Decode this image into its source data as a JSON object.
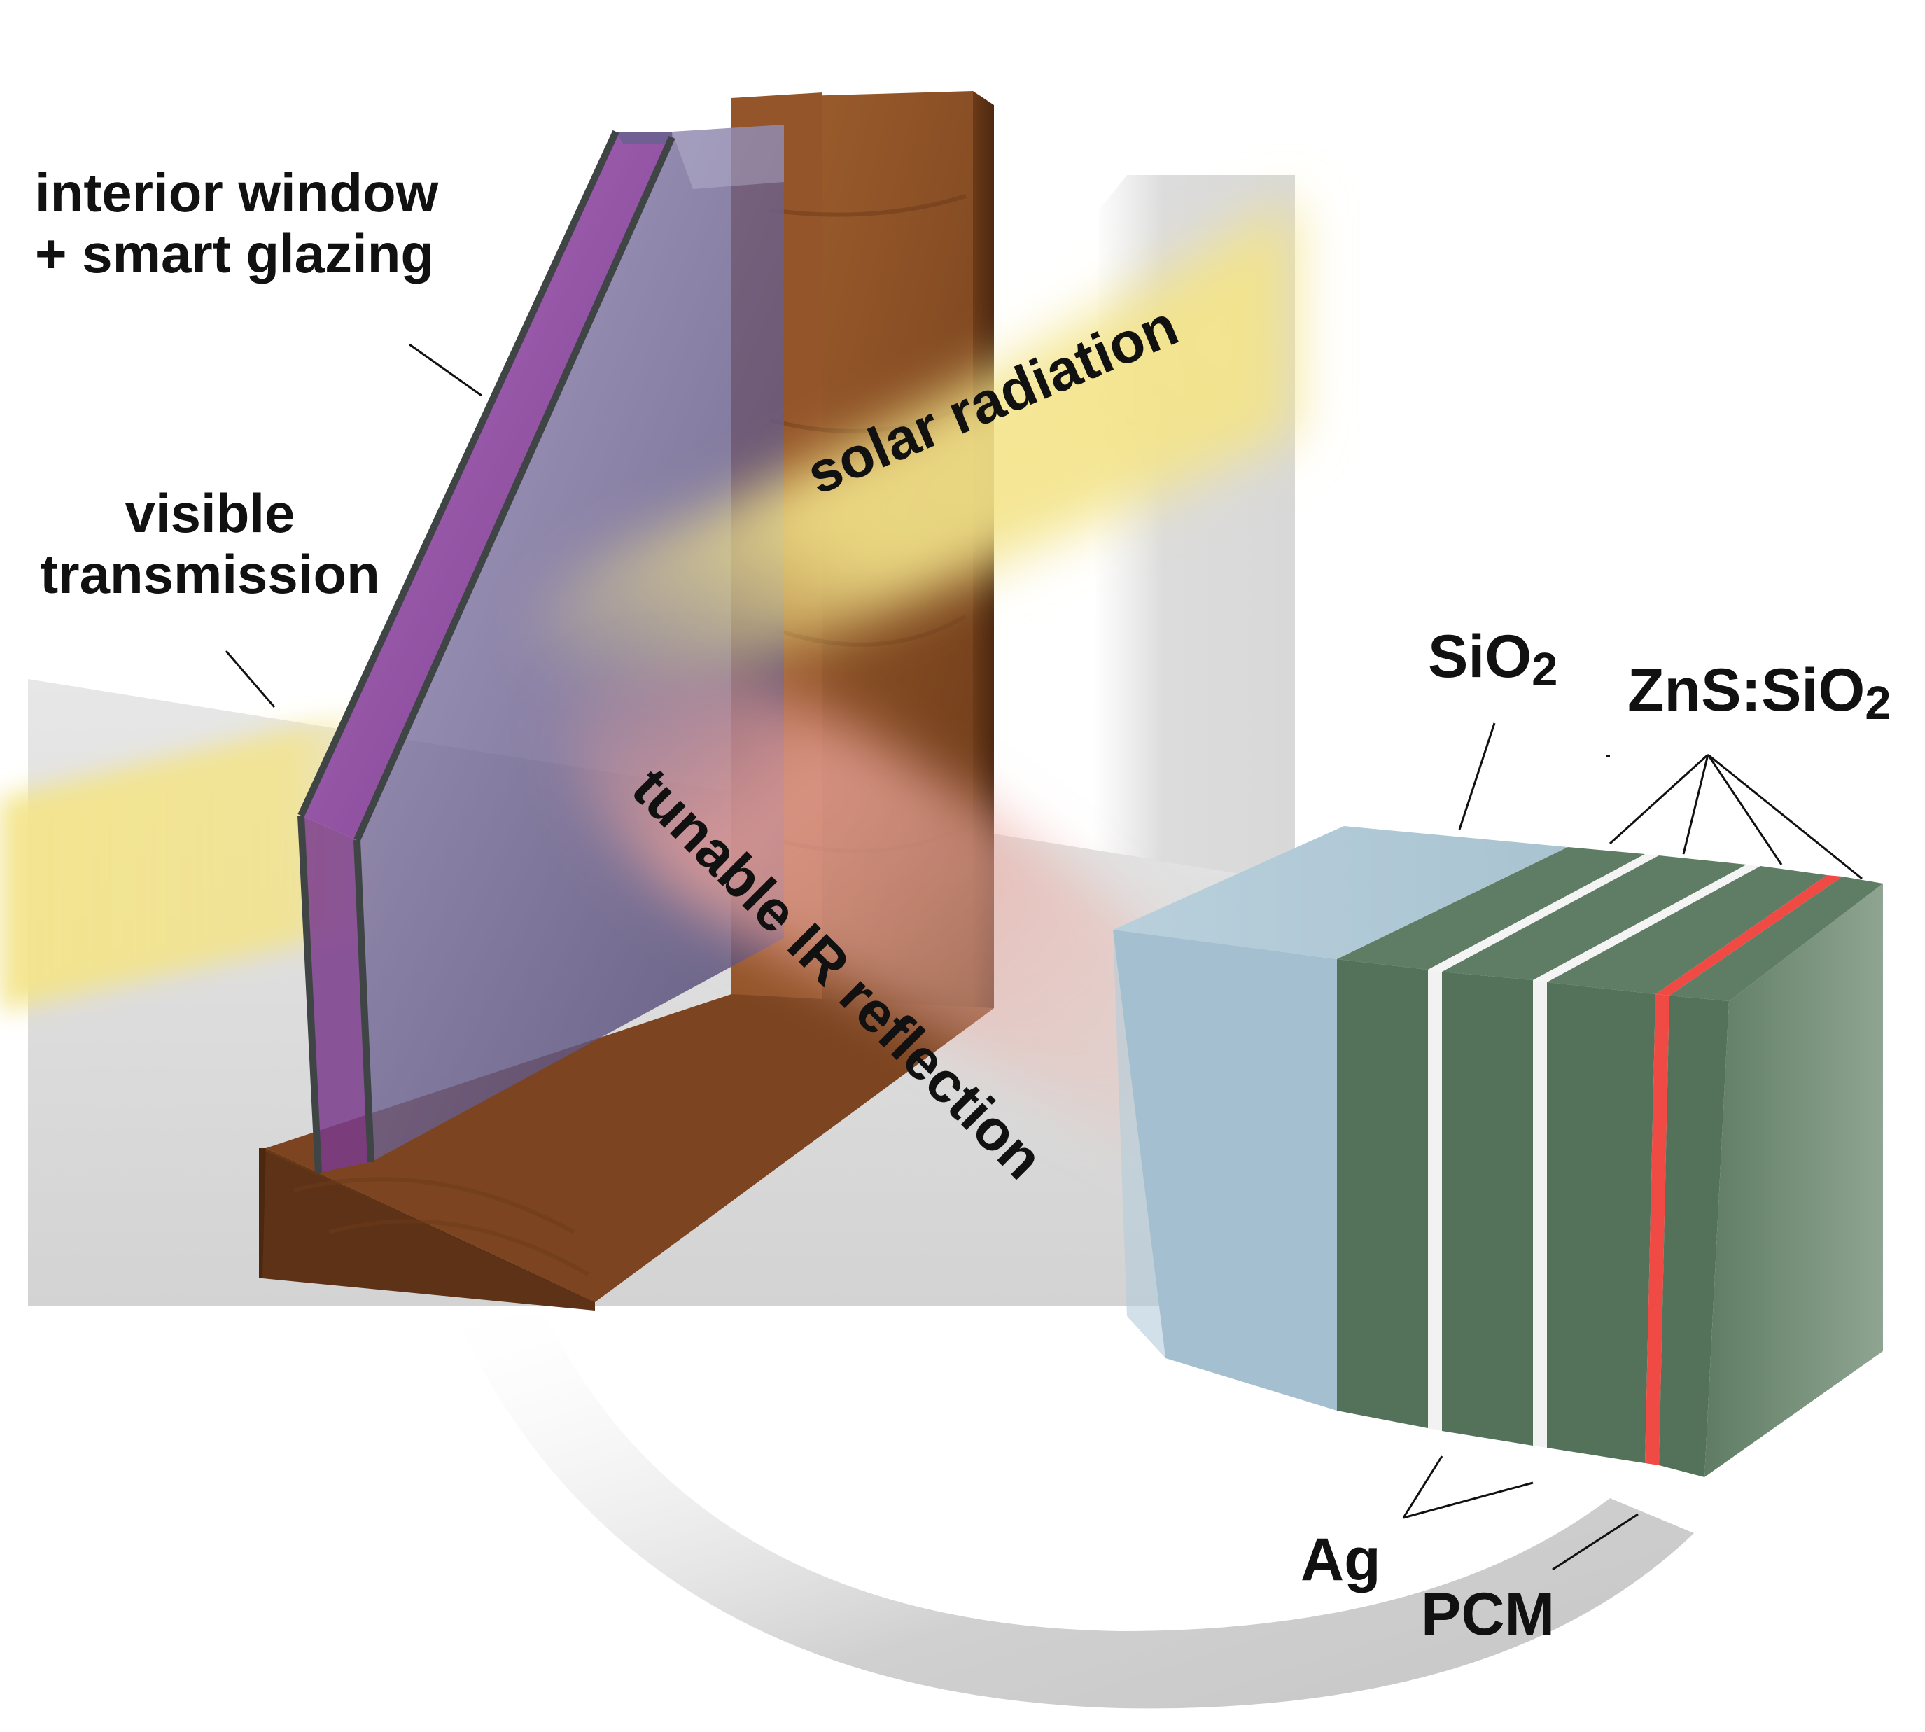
{
  "labels": {
    "interior_window_line1": "interior window",
    "interior_window_line2": "+ smart glazing",
    "visible_line1": "visible",
    "visible_line2": "transmission",
    "solar": "solar radiation",
    "ir": "tunable IR reflection",
    "sio2_base": "SiO",
    "sio2_sub": "2",
    "zns_base": "ZnS:SiO",
    "zns_sub": "2",
    "ag": "Ag",
    "pcm": "PCM"
  },
  "colors": {
    "wood": "#8a4f25",
    "wood_dark": "#5e3216",
    "glass": "#5a4f82",
    "smart_coating": "#9a4fa8",
    "solar_beam": "#f3e48a",
    "ir_beam": "#eba39c",
    "sio2_block": "#a6c2d2",
    "zns_layer": "#547159",
    "ag_layer": "#f2f2f2",
    "pcm_layer": "#ef4a44",
    "floor": "#d9d9d9"
  }
}
